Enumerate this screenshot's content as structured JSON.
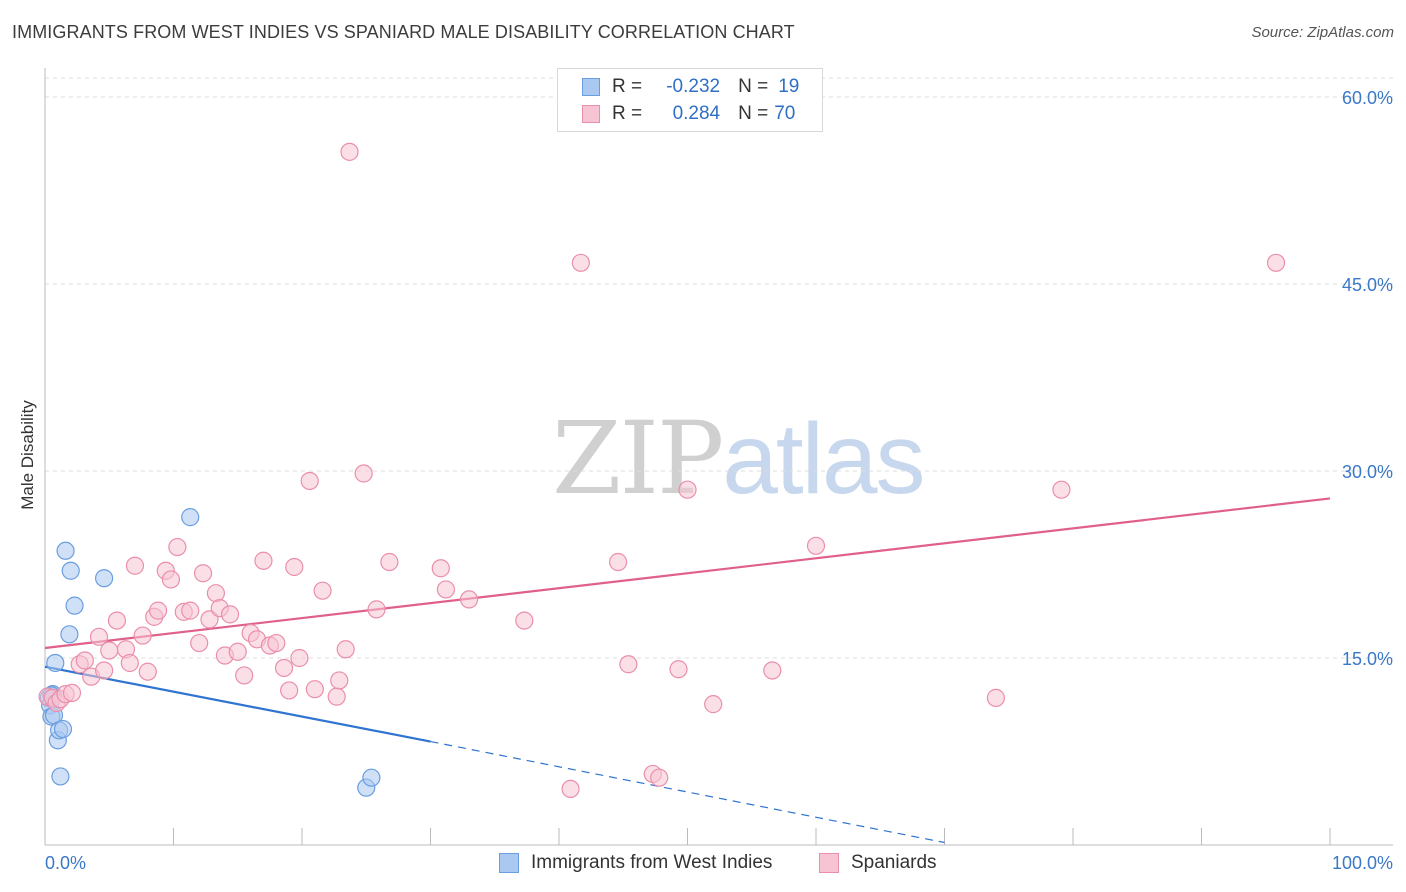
{
  "title": "IMMIGRANTS FROM WEST INDIES VS SPANIARD MALE DISABILITY CORRELATION CHART",
  "source": "Source: ZipAtlas.com",
  "watermark": {
    "part1": "ZIP",
    "part2": "atlas"
  },
  "legend_box": {
    "row1": {
      "r_label": "R =",
      "r_value": "-0.232",
      "n_label": "N =",
      "n_value": "19"
    },
    "row2": {
      "r_label": "R =",
      "r_value": "0.284",
      "n_label": "N =",
      "n_value": "70"
    }
  },
  "bottom_legend": {
    "series1": "Immigrants from West Indies",
    "series2": "Spaniards"
  },
  "colors": {
    "blue_fill": "#aac9f0",
    "blue_stroke": "#6a9ee0",
    "blue_line": "#2f74d0",
    "pink_fill": "#f7c4d3",
    "pink_stroke": "#ea8fab",
    "pink_line": "#e0608a",
    "tick_text": "#3a78c8",
    "grid": "#dddddd"
  },
  "chart_data": {
    "type": "scatter",
    "title": "IMMIGRANTS FROM WEST INDIES VS SPANIARD MALE DISABILITY CORRELATION CHART",
    "xlabel": "",
    "ylabel": "Male Disability",
    "xlim": [
      0,
      100
    ],
    "ylim": [
      0,
      60
    ],
    "x_tick_labels": [
      "0.0%",
      "100.0%"
    ],
    "y_ticks": [
      15,
      30,
      45,
      60
    ],
    "y_tick_labels": [
      "15.0%",
      "30.0%",
      "45.0%",
      "60.0%"
    ],
    "series": [
      {
        "name": "Immigrants from West Indies",
        "color": "blue",
        "r": -0.232,
        "n": 19,
        "points": [
          [
            0.3,
            11.8
          ],
          [
            0.4,
            11.2
          ],
          [
            0.5,
            10.3
          ],
          [
            0.6,
            12.1
          ],
          [
            0.7,
            10.4
          ],
          [
            0.8,
            14.6
          ],
          [
            1.0,
            8.4
          ],
          [
            1.1,
            9.2
          ],
          [
            1.2,
            5.5
          ],
          [
            1.4,
            9.3
          ],
          [
            1.6,
            23.6
          ],
          [
            1.9,
            16.9
          ],
          [
            2.0,
            22.0
          ],
          [
            2.3,
            19.2
          ],
          [
            4.6,
            21.4
          ],
          [
            11.3,
            26.3
          ],
          [
            25.0,
            4.6
          ],
          [
            25.4,
            5.4
          ],
          [
            0.5,
            12.0
          ]
        ],
        "trend": {
          "x0": 0,
          "y0": 14.3,
          "x1": 30,
          "y1": 8.3,
          "dash_to_x": 70,
          "dash_to_y": 0.2
        }
      },
      {
        "name": "Spaniards",
        "color": "pink",
        "r": 0.284,
        "n": 70,
        "points": [
          [
            0.2,
            11.9
          ],
          [
            0.6,
            11.8
          ],
          [
            0.9,
            11.4
          ],
          [
            1.2,
            11.7
          ],
          [
            1.6,
            12.1
          ],
          [
            2.1,
            12.2
          ],
          [
            2.7,
            14.5
          ],
          [
            3.1,
            14.8
          ],
          [
            3.6,
            13.5
          ],
          [
            4.2,
            16.7
          ],
          [
            4.6,
            14.0
          ],
          [
            5.0,
            15.6
          ],
          [
            5.6,
            18.0
          ],
          [
            6.3,
            15.7
          ],
          [
            6.6,
            14.6
          ],
          [
            7.0,
            22.4
          ],
          [
            7.6,
            16.8
          ],
          [
            8.0,
            13.9
          ],
          [
            8.5,
            18.3
          ],
          [
            8.8,
            18.8
          ],
          [
            9.4,
            22.0
          ],
          [
            9.8,
            21.3
          ],
          [
            10.3,
            23.9
          ],
          [
            10.8,
            18.7
          ],
          [
            11.3,
            18.8
          ],
          [
            12.0,
            16.2
          ],
          [
            12.3,
            21.8
          ],
          [
            12.8,
            18.1
          ],
          [
            13.3,
            20.2
          ],
          [
            13.6,
            19.0
          ],
          [
            14.0,
            15.2
          ],
          [
            14.4,
            18.5
          ],
          [
            15.0,
            15.5
          ],
          [
            15.5,
            13.6
          ],
          [
            16.0,
            17.0
          ],
          [
            16.5,
            16.5
          ],
          [
            17.0,
            22.8
          ],
          [
            17.5,
            16.0
          ],
          [
            18.0,
            16.2
          ],
          [
            18.6,
            14.2
          ],
          [
            19.0,
            12.4
          ],
          [
            19.4,
            22.3
          ],
          [
            19.8,
            15.0
          ],
          [
            20.6,
            29.2
          ],
          [
            21.0,
            12.5
          ],
          [
            21.6,
            20.4
          ],
          [
            22.7,
            11.9
          ],
          [
            22.9,
            13.2
          ],
          [
            23.4,
            15.7
          ],
          [
            23.7,
            55.6
          ],
          [
            24.8,
            29.8
          ],
          [
            25.8,
            18.9
          ],
          [
            26.8,
            22.7
          ],
          [
            30.8,
            22.2
          ],
          [
            31.2,
            20.5
          ],
          [
            33.0,
            19.7
          ],
          [
            37.3,
            18.0
          ],
          [
            40.9,
            4.5
          ],
          [
            41.7,
            46.7
          ],
          [
            44.6,
            22.7
          ],
          [
            45.4,
            14.5
          ],
          [
            47.3,
            5.7
          ],
          [
            47.8,
            5.4
          ],
          [
            49.3,
            14.1
          ],
          [
            50.0,
            28.5
          ],
          [
            52.0,
            11.3
          ],
          [
            56.6,
            14.0
          ],
          [
            60.0,
            24.0
          ],
          [
            74.0,
            11.8
          ],
          [
            79.1,
            28.5
          ],
          [
            95.8,
            46.7
          ]
        ],
        "trend": {
          "x0": 0,
          "y0": 15.8,
          "x1": 100,
          "y1": 27.8
        }
      }
    ]
  }
}
